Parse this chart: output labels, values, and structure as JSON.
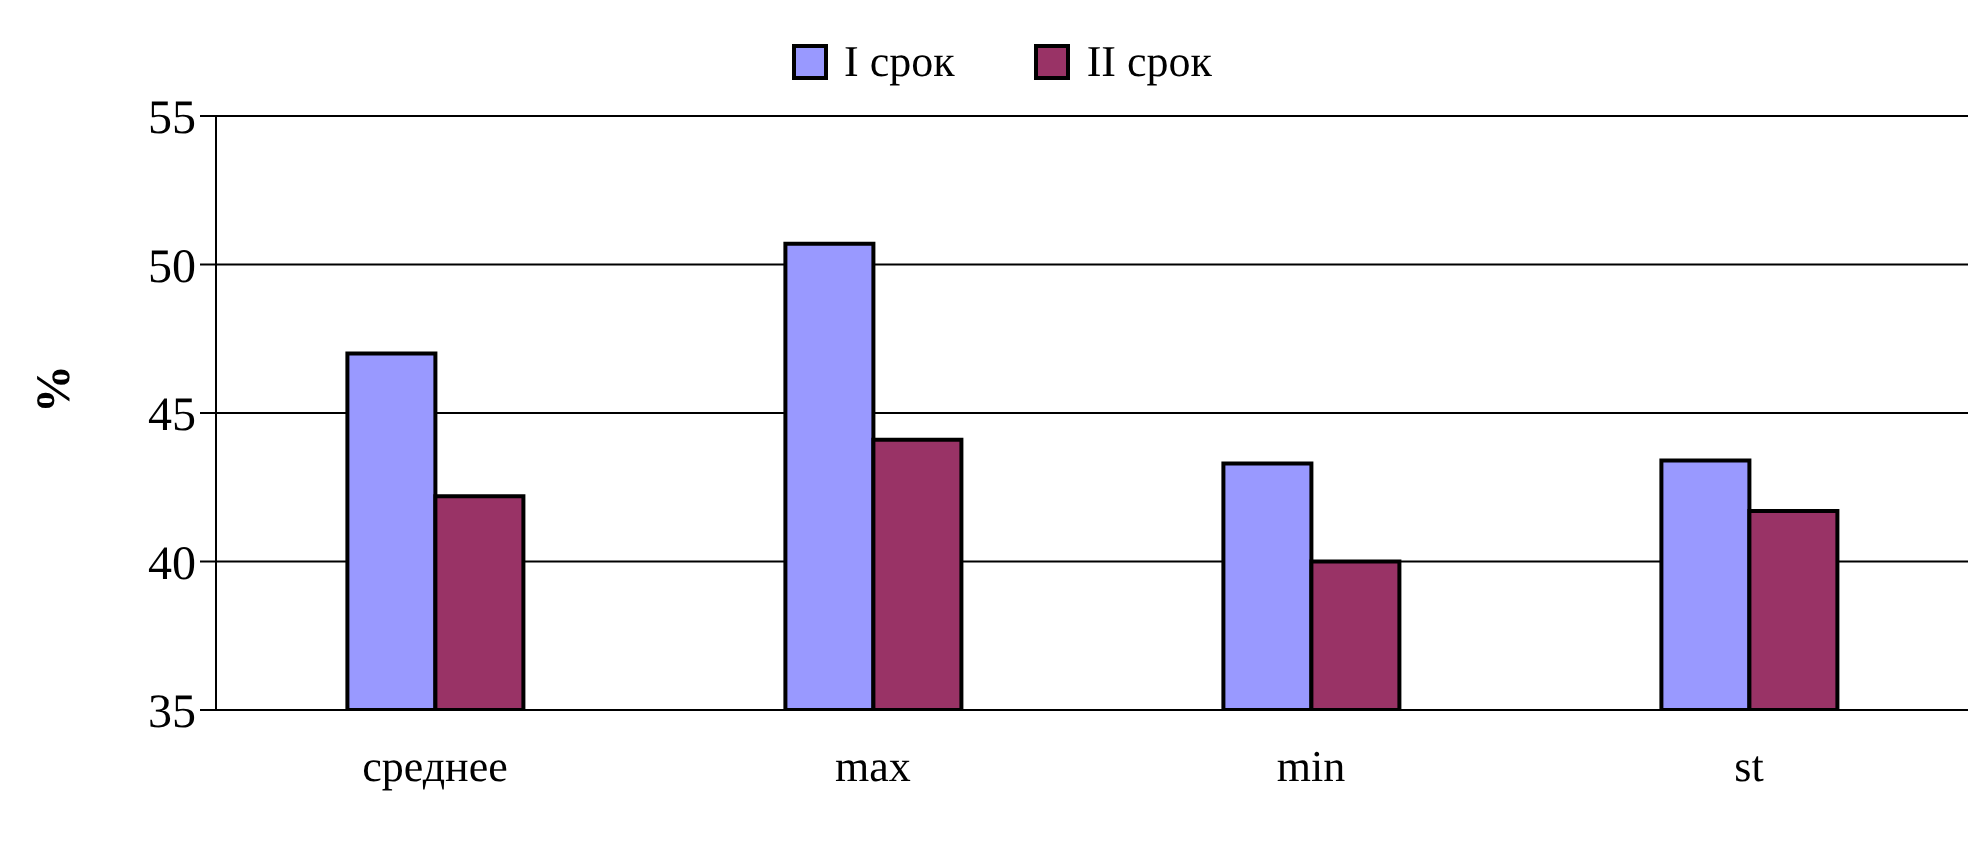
{
  "chart_data": {
    "type": "bar",
    "ylabel": "%",
    "categories": [
      "среднее",
      "max",
      "min",
      "st"
    ],
    "series": [
      {
        "name": "I срок",
        "color": "#9999ff",
        "values": [
          47.0,
          50.7,
          43.3,
          43.4
        ]
      },
      {
        "name": "II срок",
        "color": "#993366",
        "values": [
          42.2,
          44.1,
          40.0,
          41.7
        ]
      }
    ],
    "ylim": [
      35,
      55
    ],
    "yticks": [
      35,
      40,
      45,
      50,
      55
    ],
    "grid": "y",
    "legend": "top"
  }
}
